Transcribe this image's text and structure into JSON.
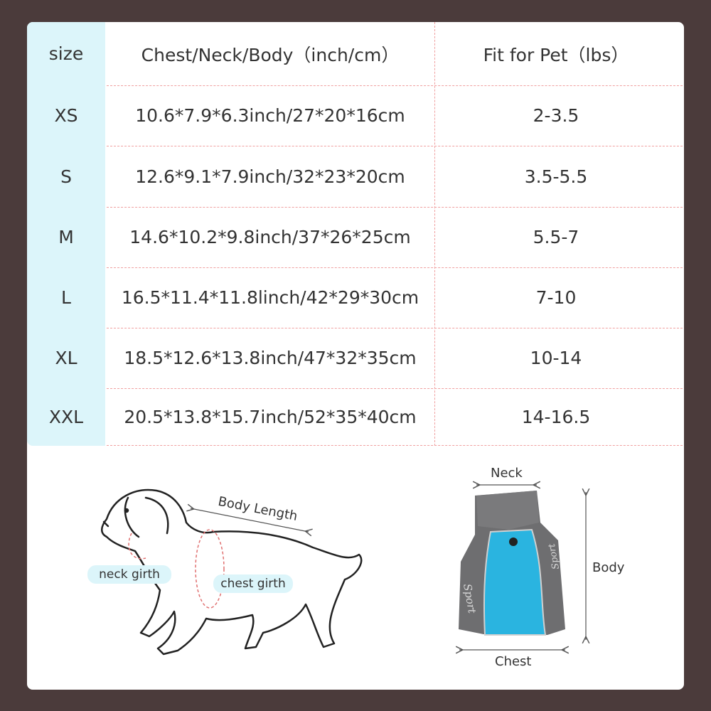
{
  "table": {
    "headers": [
      "size",
      "Chest/Neck/Body（inch/cm）",
      "Fit for Pet（lbs）"
    ],
    "rows": [
      {
        "size": "XS",
        "measure": "10.6*7.9*6.3inch/27*20*16cm",
        "fit": "2-3.5"
      },
      {
        "size": "S",
        "measure": "12.6*9.1*7.9inch/32*23*20cm",
        "fit": "3.5-5.5"
      },
      {
        "size": "M",
        "measure": "14.6*10.2*9.8inch/37*26*25cm",
        "fit": "5.5-7"
      },
      {
        "size": "L",
        "measure": "16.5*11.4*11.8linch/42*29*30cm",
        "fit": "7-10"
      },
      {
        "size": "XL",
        "measure": "18.5*12.6*13.8inch/47*32*35cm",
        "fit": "10-14"
      },
      {
        "size": "XXL",
        "measure": "20.5*13.8*15.7inch/52*35*40cm",
        "fit": "14-16.5"
      }
    ]
  },
  "dog_diagram": {
    "body_length": "Body Length",
    "neck_girth": "neck girth",
    "chest_girth": "chest girth"
  },
  "coat_diagram": {
    "neck": "Neck",
    "body": "Body",
    "chest": "Chest",
    "embroidery": "Sport"
  },
  "colors": {
    "background": "#4b3b3b",
    "size_column": "#dcf5fa",
    "divider": "#f0a0a0",
    "coat_blue": "#2ab4e0",
    "coat_gray": "#6e6e70"
  }
}
